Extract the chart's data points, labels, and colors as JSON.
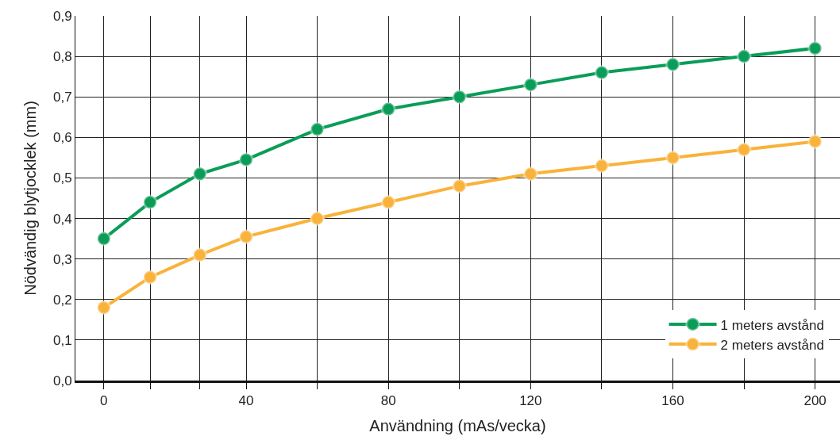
{
  "chart_data": {
    "type": "line",
    "xlabel": "Användning (mAs/vecka)",
    "ylabel": "Nödvändig blytjocklek (mm)",
    "x": [
      0,
      13,
      27,
      40,
      60,
      80,
      100,
      120,
      140,
      160,
      180,
      200
    ],
    "series": [
      {
        "name": "1 meters avstånd",
        "color": "#0a9d58",
        "values": [
          0.35,
          0.44,
          0.51,
          0.545,
          0.62,
          0.67,
          0.7,
          0.73,
          0.76,
          0.78,
          0.8,
          0.82
        ]
      },
      {
        "name": "2 meters avstånd",
        "color": "#f9b23a",
        "values": [
          0.18,
          0.255,
          0.31,
          0.355,
          0.4,
          0.44,
          0.48,
          0.51,
          0.53,
          0.55,
          0.57,
          0.59
        ]
      }
    ],
    "xlim": [
      -8,
      207
    ],
    "xticks": [
      0,
      {
        "value": 13,
        "label": null
      },
      {
        "value": 27,
        "label": null
      },
      40,
      {
        "value": 60,
        "label": null
      },
      80,
      {
        "value": 100,
        "label": null
      },
      120,
      {
        "value": 140,
        "label": null
      },
      160,
      {
        "value": 180,
        "label": null
      },
      200
    ],
    "ylim": [
      0,
      0.9
    ],
    "yticks": [
      {
        "value": 0,
        "label": "0,0"
      },
      {
        "value": 0.1,
        "label": "0,1"
      },
      {
        "value": 0.2,
        "label": "0,2"
      },
      {
        "value": 0.3,
        "label": "0,3"
      },
      {
        "value": 0.4,
        "label": "0,4"
      },
      {
        "value": 0.5,
        "label": "0,5"
      },
      {
        "value": 0.6,
        "label": "0,6"
      },
      {
        "value": 0.7,
        "label": "0,7"
      },
      {
        "value": 0.8,
        "label": "0,8"
      },
      {
        "value": 0.9,
        "label": "0,9"
      }
    ],
    "grid": true,
    "legend": "bottom right",
    "marker": "circle",
    "line_style": "solid"
  }
}
